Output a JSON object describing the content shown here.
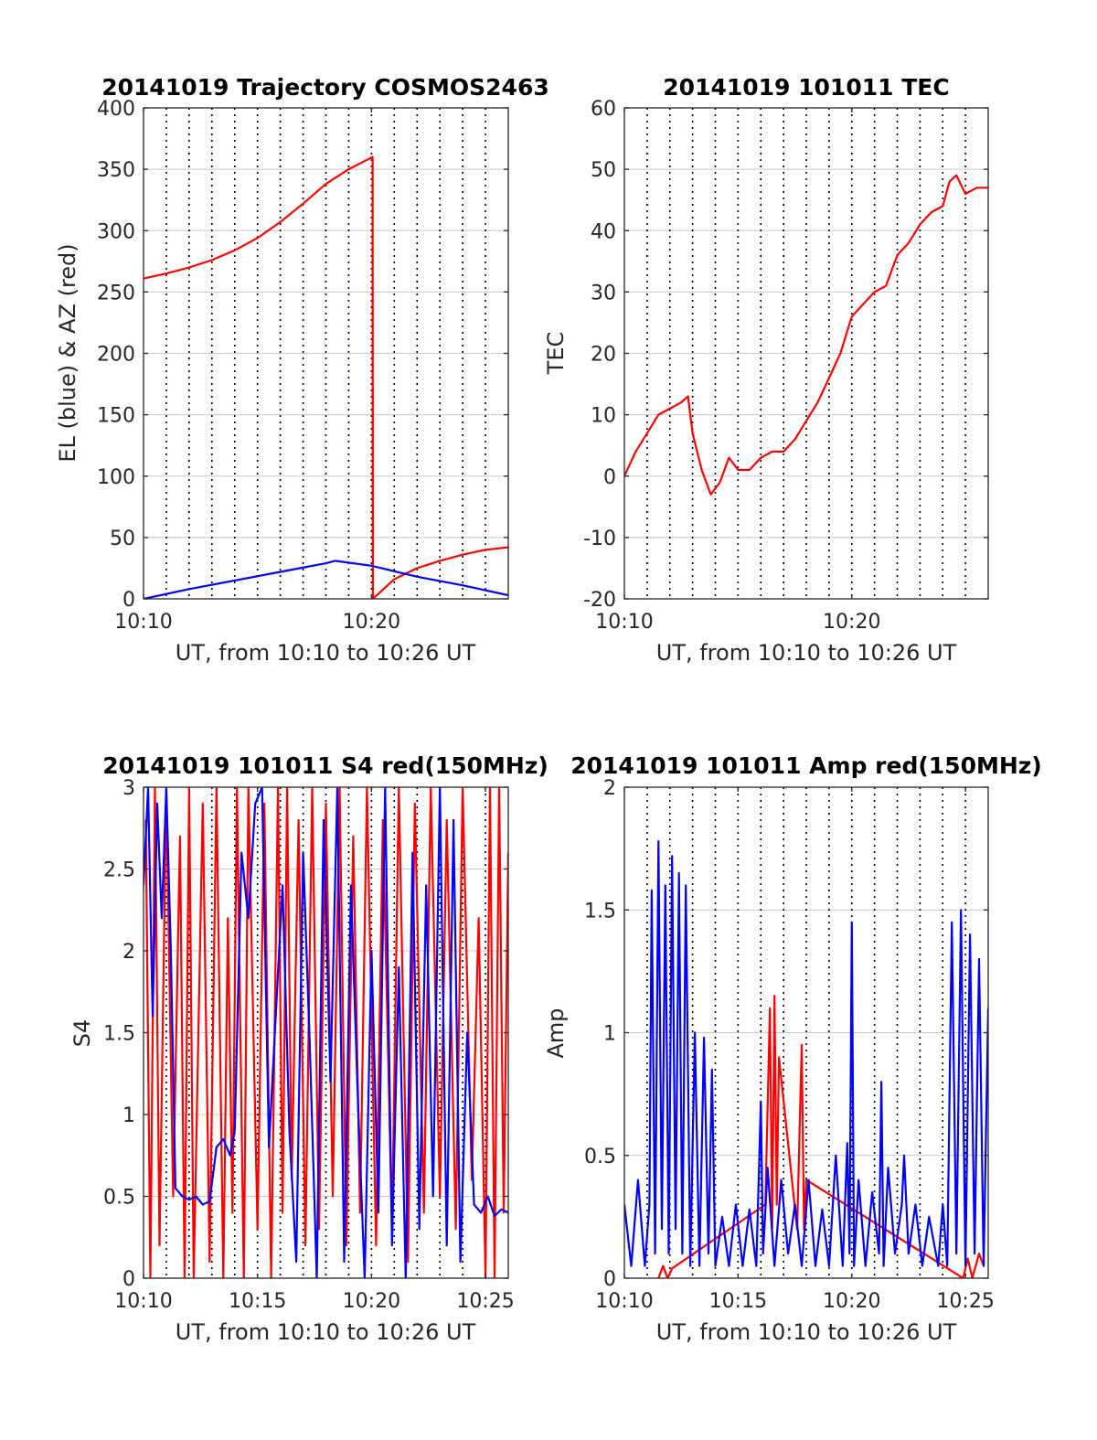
{
  "colors": {
    "el": "#0000ff",
    "az": "#ff0000",
    "grid": "#c8c8c8",
    "axis": "#262626"
  },
  "chart_data": [
    {
      "id": "trajectory",
      "type": "line",
      "title": "20141019 Trajectory COSMOS2463",
      "xlabel": "UT, from 10:10 to 10:26 UT",
      "ylabel": "EL (blue) & AZ (red)",
      "xlim": [
        0,
        16
      ],
      "ylim": [
        0,
        400
      ],
      "xticks": [
        0,
        10
      ],
      "xtick_labels": [
        "10:10",
        "10:20"
      ],
      "yticks": [
        0,
        50,
        100,
        150,
        200,
        250,
        300,
        350,
        400
      ],
      "ytick_labels": [
        "0",
        "50",
        "100",
        "150",
        "200",
        "250",
        "300",
        "350",
        "400"
      ],
      "grid": true,
      "series": [
        {
          "color": "#ff0000",
          "x": [
            0,
            1,
            2,
            3,
            4,
            5,
            6,
            7,
            8,
            9,
            10.05,
            10.06,
            11,
            12,
            13,
            14,
            15,
            16
          ],
          "y": [
            261,
            265,
            270,
            276,
            284,
            294,
            307,
            322,
            338,
            350,
            360,
            0,
            16,
            25,
            31,
            36,
            40,
            42
          ]
        },
        {
          "color": "#0000ff",
          "x": [
            0,
            2,
            4,
            6,
            8,
            8.4,
            10,
            12,
            14,
            16
          ],
          "y": [
            0,
            8,
            15,
            22,
            29,
            31,
            27,
            18,
            11,
            3
          ]
        }
      ]
    },
    {
      "id": "tec",
      "type": "line",
      "title": "20141019 101011 TEC",
      "xlabel": "UT, from 10:10 to 10:26 UT",
      "ylabel": "TEC",
      "xlim": [
        0,
        16
      ],
      "ylim": [
        -20,
        60
      ],
      "xticks": [
        0,
        10
      ],
      "xtick_labels": [
        "10:10",
        "10:20"
      ],
      "yticks": [
        -20,
        -10,
        0,
        10,
        20,
        30,
        40,
        50,
        60
      ],
      "ytick_labels": [
        "-20",
        "-10",
        "0",
        "10",
        "20",
        "30",
        "40",
        "50",
        "60"
      ],
      "grid": true,
      "series": [
        {
          "color": "#ff0000",
          "x": [
            0,
            0.5,
            1,
            1.5,
            2,
            2.5,
            2.8,
            3,
            3.4,
            3.8,
            4.2,
            4.6,
            5,
            5.5,
            6,
            6.5,
            7,
            7.5,
            8,
            8.5,
            9,
            9.5,
            10,
            10.5,
            11,
            11.5,
            12,
            12.5,
            13,
            13.5,
            14,
            14.3,
            14.6,
            15,
            15.5,
            16
          ],
          "y": [
            0,
            4,
            7,
            10,
            11,
            12,
            13,
            7,
            1,
            -3,
            -1,
            3,
            1,
            1,
            3,
            4,
            4,
            6,
            9,
            12,
            16,
            20,
            26,
            28,
            30,
            31,
            36,
            38,
            41,
            43,
            44,
            48,
            49,
            46,
            47,
            47
          ]
        }
      ]
    },
    {
      "id": "s4",
      "type": "line",
      "title": "20141019 101011 S4 red(150MHz)",
      "xlabel": "UT, from 10:10 to 10:26 UT",
      "ylabel": "S4",
      "xlim": [
        0,
        16
      ],
      "ylim": [
        0,
        3
      ],
      "xticks": [
        0,
        5,
        10,
        15
      ],
      "xtick_labels": [
        "10:10",
        "10:15",
        "10:20",
        "10:25"
      ],
      "yticks": [
        0,
        0.5,
        1,
        1.5,
        2,
        2.5,
        3
      ],
      "ytick_labels": [
        "0",
        "0.5",
        "1",
        "1.5",
        "2",
        "2.5",
        "3"
      ],
      "grid": true,
      "series": [
        {
          "color": "#ff0000",
          "x": [
            0.1,
            0.3,
            0.5,
            0.7,
            1.0,
            1.3,
            1.6,
            1.8,
            2.0,
            2.2,
            2.6,
            2.9,
            3.2,
            3.5,
            3.7,
            3.9,
            4.1,
            4.4,
            4.6,
            5.0,
            5.3,
            5.6,
            5.9,
            6.1,
            6.3,
            6.5,
            6.8,
            7.1,
            7.4,
            7.7,
            8.0,
            8.3,
            8.6,
            8.9,
            9.2,
            9.5,
            9.8,
            10.2,
            10.5,
            10.9,
            11.2,
            11.6,
            11.9,
            12.3,
            12.6,
            13.0,
            13.3,
            13.7,
            14.0,
            14.4,
            14.7,
            15.0,
            15.2,
            15.4,
            15.6,
            15.8,
            16.0
          ],
          "y": [
            2.8,
            0,
            3,
            0.2,
            3,
            0.5,
            2.7,
            0,
            3,
            0,
            2.9,
            0.1,
            3,
            0,
            2.2,
            0.4,
            3,
            0,
            3,
            0.3,
            2.9,
            0,
            3,
            0.4,
            3,
            0.6,
            2.8,
            0.2,
            3,
            0.3,
            2.9,
            0.5,
            3,
            0.2,
            2.7,
            0.4,
            3,
            0.2,
            2.8,
            0.3,
            3,
            0.1,
            2.9,
            0.4,
            3,
            0.5,
            2.8,
            0.3,
            3,
            0.6,
            2.2,
            0,
            3,
            0,
            3,
            0.4,
            2.6
          ]
        },
        {
          "color": "#0000ff",
          "x": [
            0,
            0.2,
            0.4,
            0.6,
            0.8,
            1.0,
            1.2,
            1.4,
            1.7,
            2.0,
            2.3,
            2.6,
            2.9,
            3.2,
            3.5,
            3.8,
            4.0,
            4.3,
            4.6,
            4.9,
            5.2,
            5.5,
            5.8,
            6.1,
            6.4,
            6.7,
            7.0,
            7.3,
            7.6,
            7.9,
            8.2,
            8.5,
            8.8,
            9.1,
            9.4,
            9.7,
            10.0,
            10.3,
            10.6,
            10.9,
            11.2,
            11.5,
            11.8,
            12.1,
            12.4,
            12.7,
            13.0,
            13.3,
            13.6,
            13.9,
            14.2,
            14.5,
            14.8,
            15.1,
            15.4,
            15.7,
            16.0
          ],
          "y": [
            2.4,
            3,
            1.6,
            2.9,
            2.2,
            3,
            2.0,
            0.55,
            0.5,
            0.48,
            0.5,
            0.45,
            0.47,
            0.8,
            0.85,
            0.75,
            0.9,
            2.6,
            2.2,
            2.9,
            3,
            0.8,
            1.6,
            2.4,
            0.9,
            0.1,
            2.6,
            1.4,
            0,
            2.8,
            1.2,
            3,
            0.1,
            2.4,
            1.1,
            0,
            2.0,
            0.4,
            3,
            0.2,
            1.9,
            0,
            2.6,
            0.3,
            2.4,
            0.5,
            3,
            0.2,
            2.8,
            0.1,
            1.5,
            0.45,
            0.4,
            0.5,
            0.38,
            0.42,
            0.4
          ]
        }
      ]
    },
    {
      "id": "amp",
      "type": "line",
      "title": "20141019 101011 Amp red(150MHz)",
      "xlabel": "UT, from 10:10 to 10:26 UT",
      "ylabel": "Amp",
      "xlim": [
        0,
        16
      ],
      "ylim": [
        0,
        2
      ],
      "xticks": [
        0,
        5,
        10,
        15
      ],
      "xtick_labels": [
        "10:10",
        "10:15",
        "10:20",
        "10:25"
      ],
      "yticks": [
        0,
        0.5,
        1,
        1.5,
        2
      ],
      "ytick_labels": [
        "0",
        "0.5",
        "1",
        "1.5",
        "2"
      ],
      "grid": true,
      "series": [
        {
          "color": "#ff0000",
          "x": [
            1.5,
            1.7,
            1.9,
            2.1,
            6.2,
            6.4,
            6.5,
            6.6,
            6.7,
            6.8,
            7.6,
            7.8,
            7.9,
            8.0,
            14.9,
            15.1,
            15.3,
            15.6,
            15.8
          ],
          "y": [
            0,
            0.05,
            0,
            0.04,
            0.3,
            1.1,
            0.2,
            1.15,
            0.3,
            0.9,
            0.2,
            0.95,
            0.2,
            0.4,
            0,
            0.08,
            0,
            0.1,
            0.05
          ]
        },
        {
          "color": "#0000ff",
          "x": [
            0,
            0.3,
            0.6,
            0.9,
            1.1,
            1.2,
            1.35,
            1.5,
            1.65,
            1.8,
            1.95,
            2.1,
            2.25,
            2.4,
            2.55,
            2.7,
            2.9,
            3.1,
            3.3,
            3.5,
            3.7,
            3.85,
            4.0,
            4.3,
            4.6,
            4.9,
            5.2,
            5.5,
            5.8,
            6.0,
            6.1,
            6.3,
            6.6,
            6.9,
            7.2,
            7.5,
            7.8,
            8.1,
            8.4,
            8.7,
            9.0,
            9.3,
            9.6,
            9.8,
            9.9,
            10.0,
            10.1,
            10.3,
            10.6,
            10.9,
            11.2,
            11.3,
            11.4,
            11.6,
            11.9,
            12.2,
            12.3,
            12.5,
            12.8,
            13.1,
            13.4,
            13.8,
            14.0,
            14.2,
            14.4,
            14.6,
            14.8,
            15.0,
            15.2,
            15.4,
            15.6,
            15.8,
            16.0
          ],
          "y": [
            0.3,
            0.05,
            0.4,
            0.05,
            0.3,
            1.58,
            0.1,
            1.78,
            0.2,
            1.6,
            0.1,
            1.72,
            0.2,
            1.65,
            0.1,
            1.6,
            0.05,
            1.0,
            0.05,
            0.98,
            0.1,
            0.85,
            0.05,
            0.25,
            0.05,
            0.3,
            0.05,
            0.28,
            0.05,
            0.72,
            0.1,
            0.45,
            0.05,
            0.4,
            0.1,
            0.3,
            0.05,
            0.4,
            0.05,
            0.28,
            0.05,
            0.5,
            0.05,
            0.55,
            0.1,
            1.45,
            0.05,
            0.4,
            0.05,
            0.35,
            0.1,
            0.8,
            0.05,
            0.45,
            0.1,
            0.3,
            0.5,
            0.1,
            0.3,
            0.05,
            0.25,
            0.05,
            0.3,
            0.05,
            1.45,
            0.1,
            1.5,
            0.05,
            1.4,
            0.1,
            1.3,
            0.05,
            1.1
          ]
        }
      ]
    }
  ]
}
